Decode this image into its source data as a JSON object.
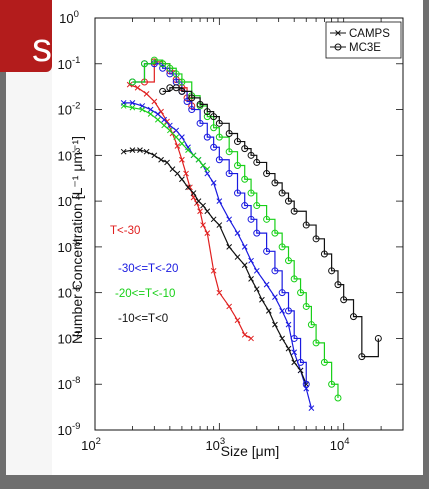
{
  "chart_data": {
    "type": "line",
    "title": "",
    "xlabel": "Size [μm]",
    "ylabel": "Number Concentration [L⁻¹ μm⁻¹]",
    "xscale": "log",
    "yscale": "log",
    "xlim": [
      100,
      30000
    ],
    "ylim": [
      1e-09,
      1
    ],
    "x_ticks": [
      {
        "value": 100,
        "base": "10",
        "exp": "2"
      },
      {
        "value": 1000,
        "base": "10",
        "exp": "3"
      },
      {
        "value": 10000,
        "base": "10",
        "exp": "4"
      }
    ],
    "y_ticks": [
      {
        "value": 1,
        "base": "10",
        "exp": "0"
      },
      {
        "value": 0.1,
        "base": "10",
        "exp": "-1"
      },
      {
        "value": 0.01,
        "base": "10",
        "exp": "-2"
      },
      {
        "value": 0.001,
        "base": "10",
        "exp": "-3"
      },
      {
        "value": 0.0001,
        "base": "10",
        "exp": "-4"
      },
      {
        "value": 1e-05,
        "base": "10",
        "exp": "-5"
      },
      {
        "value": 1e-06,
        "base": "10",
        "exp": "-6"
      },
      {
        "value": 1e-07,
        "base": "10",
        "exp": "-7"
      },
      {
        "value": 1e-08,
        "base": "10",
        "exp": "-8"
      },
      {
        "value": 1e-09,
        "base": "10",
        "exp": "-9"
      }
    ],
    "legend": {
      "position": "top-right",
      "entries": [
        {
          "label": "CAMPS",
          "marker": "x"
        },
        {
          "label": "MC3E",
          "marker": "o"
        }
      ]
    },
    "annotations": [
      {
        "text": "T<-30",
        "color": "#e02020"
      },
      {
        "text": "-30<=T<-20",
        "color": "#1a1ae0"
      },
      {
        "text": "-20<=T<-10",
        "color": "#18d018"
      },
      {
        "text": "-10<=T<0",
        "color": "#111111"
      }
    ],
    "series": [
      {
        "instrument": "CAMPS",
        "temp_range": "T<-30",
        "color": "#e02020",
        "x": [
          190,
          220,
          260,
          300,
          340,
          380,
          420,
          460,
          500,
          540,
          580,
          620,
          660,
          700,
          740,
          800,
          900,
          1000,
          1200,
          1400,
          1600,
          1800
        ],
        "y": [
          0.035,
          0.03,
          0.022,
          0.015,
          0.009,
          0.0055,
          0.003,
          0.0016,
          0.0008,
          0.0004,
          0.0002,
          0.00012,
          9e-05,
          6e-05,
          3e-05,
          2e-05,
          3e-06,
          1e-06,
          5e-07,
          2.5e-07,
          1.2e-07,
          1e-07
        ]
      },
      {
        "instrument": "CAMPS",
        "temp_range": "-30<=T<-20",
        "color": "#1a1ae0",
        "x": [
          170,
          200,
          240,
          280,
          320,
          360,
          400,
          450,
          500,
          560,
          620,
          680,
          740,
          800,
          900,
          1000,
          1200,
          1400,
          1600,
          1800,
          2000,
          2400,
          2800,
          3200,
          3600,
          4000,
          4500,
          5000,
          5500
        ],
        "y": [
          0.014,
          0.014,
          0.012,
          0.01,
          0.008,
          0.006,
          0.0045,
          0.0035,
          0.0025,
          0.0015,
          0.001,
          0.0008,
          0.0006,
          0.0004,
          0.00025,
          0.0001,
          4e-05,
          2e-05,
          1e-05,
          5e-06,
          3e-06,
          1.5e-06,
          8e-07,
          4e-07,
          2e-07,
          5e-08,
          2e-08,
          8e-09,
          3e-09
        ]
      },
      {
        "instrument": "CAMPS",
        "temp_range": "-20<=T<-10",
        "color": "#18d018",
        "x": [
          170,
          200,
          240,
          280,
          320,
          360,
          400,
          450,
          500,
          560,
          620,
          680,
          740,
          800
        ],
        "y": [
          0.012,
          0.011,
          0.01,
          0.008,
          0.006,
          0.0045,
          0.0035,
          0.0025,
          0.0018,
          0.0013,
          0.001,
          0.0008,
          0.0006,
          0.0005
        ]
      },
      {
        "instrument": "CAMPS",
        "temp_range": "-10<=T<0",
        "color": "#111111",
        "x": [
          170,
          200,
          230,
          260,
          300,
          340,
          380,
          420,
          460,
          500,
          560,
          620,
          680,
          740,
          800,
          900,
          1000,
          1200,
          1400,
          1600,
          1800,
          2000,
          2200,
          2500,
          2800,
          3200,
          3600,
          4000,
          4500,
          5000
        ],
        "y": [
          0.0012,
          0.0013,
          0.0013,
          0.0012,
          0.001,
          0.0008,
          0.0007,
          0.0005,
          0.0004,
          0.0003,
          0.0002,
          0.00015,
          0.0001,
          8e-05,
          6e-05,
          4e-05,
          3e-05,
          1e-05,
          6e-06,
          4e-06,
          2e-06,
          1.2e-06,
          7e-07,
          4e-07,
          2e-07,
          1e-07,
          6e-08,
          3e-08,
          2e-08,
          1e-08
        ]
      },
      {
        "instrument": "MC3E",
        "temp_range": "T<-30",
        "color": "#e02020",
        "x": [
          250,
          300,
          350,
          400,
          450,
          500,
          550,
          600
        ],
        "y": [
          0.04,
          0.11,
          0.1,
          0.07,
          0.045,
          0.03,
          0.018,
          0.012
        ]
      },
      {
        "instrument": "MC3E",
        "temp_range": "-30<=T<-20",
        "color": "#1a1ae0",
        "x": [
          200,
          250,
          300,
          350,
          400,
          450,
          500,
          550,
          600,
          700,
          800,
          900,
          1000,
          1200,
          1400,
          1600,
          1800,
          2000,
          2400,
          2800,
          3200,
          3600,
          4000,
          4500,
          5000
        ],
        "y": [
          0.04,
          0.1,
          0.1,
          0.08,
          0.06,
          0.04,
          0.025,
          0.015,
          0.01,
          0.005,
          0.0025,
          0.0015,
          0.0008,
          0.0004,
          0.00015,
          8e-05,
          4e-05,
          2e-05,
          8e-06,
          3e-06,
          1e-06,
          4e-07,
          1e-07,
          3e-08,
          1e-08
        ]
      },
      {
        "instrument": "MC3E",
        "temp_range": "-20<=T<-10",
        "color": "#18d018",
        "x": [
          200,
          250,
          300,
          350,
          400,
          450,
          500,
          600,
          700,
          800,
          900,
          1000,
          1200,
          1400,
          1600,
          1800,
          2000,
          2400,
          2800,
          3200,
          3600,
          4000,
          4500,
          5000,
          5500,
          6000,
          7000,
          8000,
          9000
        ],
        "y": [
          0.04,
          0.1,
          0.12,
          0.1,
          0.08,
          0.06,
          0.04,
          0.02,
          0.012,
          0.007,
          0.004,
          0.0025,
          0.0012,
          0.0006,
          0.0003,
          0.00015,
          8e-05,
          4e-05,
          2e-05,
          1e-05,
          5e-06,
          2e-06,
          1e-06,
          5e-07,
          2e-07,
          8e-08,
          3e-08,
          1e-08,
          5e-09
        ]
      },
      {
        "instrument": "MC3E",
        "temp_range": "-10<=T<0",
        "color": "#111111",
        "x": [
          350,
          400,
          450,
          500,
          600,
          700,
          800,
          900,
          1000,
          1200,
          1400,
          1600,
          1800,
          2000,
          2400,
          2800,
          3200,
          3600,
          4000,
          5000,
          6000,
          7000,
          8000,
          9000,
          10000,
          12000,
          14000,
          19000
        ],
        "y": [
          0.025,
          0.03,
          0.03,
          0.025,
          0.018,
          0.013,
          0.009,
          0.007,
          0.005,
          0.003,
          0.002,
          0.0014,
          0.001,
          0.0007,
          0.0004,
          0.00025,
          0.00015,
          0.0001,
          6e-05,
          3e-05,
          1.5e-05,
          7e-06,
          3e-06,
          1.5e-06,
          7e-07,
          3e-07,
          4e-08,
          1e-07
        ]
      }
    ]
  }
}
